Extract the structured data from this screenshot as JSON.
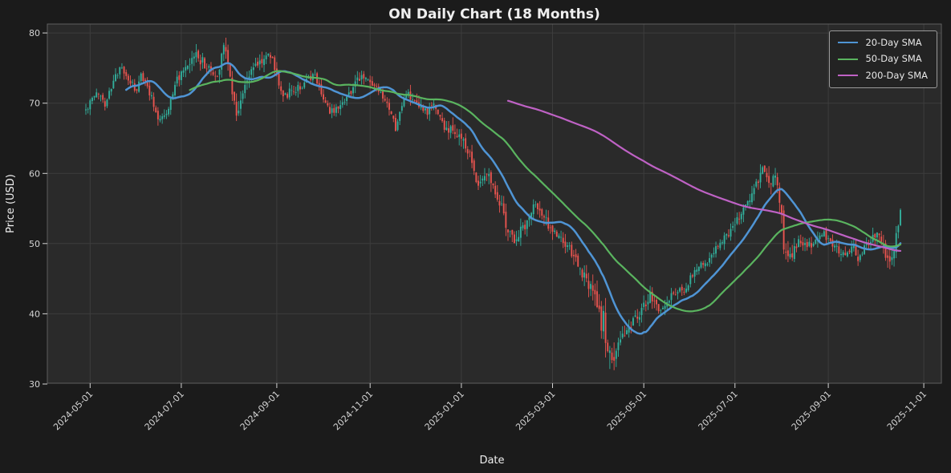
{
  "figure": {
    "background": "#1b1b1b",
    "plot_background": "#2a2a2a",
    "grid_color": "#3d3d3d",
    "spine_color": "#5f5f5f",
    "text_color": "#efefef",
    "tick_color": "#d4d4d4",
    "legend_background": "#232323",
    "legend_border": "#999999",
    "legend_text_color": "#e8e8e8"
  },
  "chart_data": {
    "type": "candlestick",
    "title": "ON Daily Chart (18 Months)",
    "xlabel": "Date",
    "ylabel": "Price (USD)",
    "ylim": [
      30,
      81.3
    ],
    "grid": true,
    "y_ticks": [
      30,
      40,
      50,
      60,
      70,
      80
    ],
    "x_tick_labels": [
      "2024-05-01",
      "2024-07-01",
      "2024-09-01",
      "2024-11-01",
      "2025-01-01",
      "2025-03-01",
      "2025-05-01",
      "2025-07-01",
      "2025-09-01",
      "2025-11-01"
    ],
    "legend": {
      "position": "upper right",
      "entries": [
        {
          "label": "20-Day SMA",
          "color": "#4f94d4",
          "window": 20
        },
        {
          "label": "50-Day SMA",
          "color": "#5ab45f",
          "window": 50
        },
        {
          "label": "200-Day SMA",
          "color": "#bf62c5",
          "window": 200
        }
      ]
    },
    "candle_colors": {
      "up": "#32af9c",
      "down": "#e8544f"
    },
    "date_range": {
      "start": "2024-04-29",
      "end": "2025-10-17",
      "frequency": "weekdays"
    },
    "price_extremes": {
      "high": 80.0,
      "high_date": "2024-07-29",
      "low": 31.2,
      "low_date": "2025-04-09"
    },
    "close_anchors": [
      [
        "2024-04-29",
        69.0
      ],
      [
        "2024-05-02",
        70.5
      ],
      [
        "2024-05-07",
        71.5
      ],
      [
        "2024-05-10",
        70.0
      ],
      [
        "2024-05-16",
        73.0
      ],
      [
        "2024-05-21",
        75.0
      ],
      [
        "2024-05-28",
        73.0
      ],
      [
        "2024-05-31",
        71.5
      ],
      [
        "2024-06-04",
        74.0
      ],
      [
        "2024-06-07",
        72.5
      ],
      [
        "2024-06-14",
        68.0
      ],
      [
        "2024-06-20",
        68.5
      ],
      [
        "2024-06-27",
        73.5
      ],
      [
        "2024-07-03",
        74.5
      ],
      [
        "2024-07-10",
        77.0
      ],
      [
        "2024-07-16",
        75.5
      ],
      [
        "2024-07-24",
        73.5
      ],
      [
        "2024-07-29",
        79.0
      ],
      [
        "2024-08-06",
        68.5
      ],
      [
        "2024-08-15",
        75.0
      ],
      [
        "2024-08-28",
        77.0
      ],
      [
        "2024-09-05",
        71.0
      ],
      [
        "2024-09-18",
        72.5
      ],
      [
        "2024-09-26",
        74.0
      ],
      [
        "2024-10-07",
        68.5
      ],
      [
        "2024-10-17",
        71.0
      ],
      [
        "2024-10-28",
        74.0
      ],
      [
        "2024-11-06",
        72.0
      ],
      [
        "2024-11-14",
        69.0
      ],
      [
        "2024-11-19",
        66.5
      ],
      [
        "2024-11-26",
        71.5
      ],
      [
        "2024-12-03",
        69.5
      ],
      [
        "2024-12-10",
        68.5
      ],
      [
        "2024-12-13",
        70.0
      ],
      [
        "2024-12-20",
        66.5
      ],
      [
        "2024-12-31",
        65.5
      ],
      [
        "2025-01-07",
        62.5
      ],
      [
        "2025-01-13",
        58.5
      ],
      [
        "2025-01-17",
        60.5
      ],
      [
        "2025-01-24",
        57.0
      ],
      [
        "2025-01-31",
        52.0
      ],
      [
        "2025-02-05",
        50.5
      ],
      [
        "2025-02-14",
        53.5
      ],
      [
        "2025-02-18",
        56.0
      ],
      [
        "2025-02-25",
        53.5
      ],
      [
        "2025-03-04",
        51.5
      ],
      [
        "2025-03-12",
        49.5
      ],
      [
        "2025-03-18",
        47.5
      ],
      [
        "2025-03-25",
        44.5
      ],
      [
        "2025-03-31",
        42.5
      ],
      [
        "2025-04-03",
        38.5
      ],
      [
        "2025-04-04",
        39.5
      ],
      [
        "2025-04-08",
        34.5
      ],
      [
        "2025-04-10",
        33.0
      ],
      [
        "2025-04-15",
        36.0
      ],
      [
        "2025-04-22",
        38.0
      ],
      [
        "2025-04-30",
        40.5
      ],
      [
        "2025-05-06",
        42.5
      ],
      [
        "2025-05-12",
        40.5
      ],
      [
        "2025-05-20",
        42.5
      ],
      [
        "2025-05-28",
        43.5
      ],
      [
        "2025-06-04",
        46.0
      ],
      [
        "2025-06-12",
        47.5
      ],
      [
        "2025-06-18",
        49.5
      ],
      [
        "2025-06-26",
        51.5
      ],
      [
        "2025-07-01",
        53.0
      ],
      [
        "2025-07-09",
        55.5
      ],
      [
        "2025-07-17",
        60.0
      ],
      [
        "2025-07-21",
        61.0
      ],
      [
        "2025-07-24",
        58.5
      ],
      [
        "2025-07-28",
        60.5
      ],
      [
        "2025-07-31",
        54.5
      ],
      [
        "2025-08-01",
        49.0
      ],
      [
        "2025-08-07",
        48.5
      ],
      [
        "2025-08-13",
        50.5
      ],
      [
        "2025-08-20",
        49.5
      ],
      [
        "2025-08-27",
        51.5
      ],
      [
        "2025-09-03",
        50.0
      ],
      [
        "2025-09-10",
        48.5
      ],
      [
        "2025-09-17",
        49.5
      ],
      [
        "2025-09-19",
        48.0
      ],
      [
        "2025-09-25",
        50.0
      ],
      [
        "2025-10-01",
        51.5
      ],
      [
        "2025-10-07",
        50.0
      ],
      [
        "2025-10-09",
        47.5
      ],
      [
        "2025-10-14",
        49.0
      ],
      [
        "2025-10-16",
        52.5
      ],
      [
        "2025-10-17",
        55.0
      ]
    ],
    "volatility_anchors": [
      [
        "2024-04-29",
        1.1
      ],
      [
        "2024-06-10",
        1.0
      ],
      [
        "2024-07-15",
        1.5
      ],
      [
        "2024-08-06",
        1.7
      ],
      [
        "2024-08-30",
        1.2
      ],
      [
        "2024-10-15",
        1.1
      ],
      [
        "2024-11-25",
        1.1
      ],
      [
        "2024-12-18",
        1.3
      ],
      [
        "2025-01-10",
        1.6
      ],
      [
        "2025-02-18",
        1.4
      ],
      [
        "2025-03-20",
        1.5
      ],
      [
        "2025-04-01",
        2.2
      ],
      [
        "2025-04-09",
        2.7
      ],
      [
        "2025-04-21",
        1.8
      ],
      [
        "2025-05-12",
        1.1
      ],
      [
        "2025-06-10",
        1.1
      ],
      [
        "2025-07-10",
        1.3
      ],
      [
        "2025-07-22",
        1.7
      ],
      [
        "2025-08-01",
        1.8
      ],
      [
        "2025-08-14",
        1.2
      ],
      [
        "2025-09-10",
        1.1
      ],
      [
        "2025-10-03",
        1.3
      ],
      [
        "2025-10-09",
        1.8
      ],
      [
        "2025-10-17",
        1.5
      ]
    ]
  }
}
